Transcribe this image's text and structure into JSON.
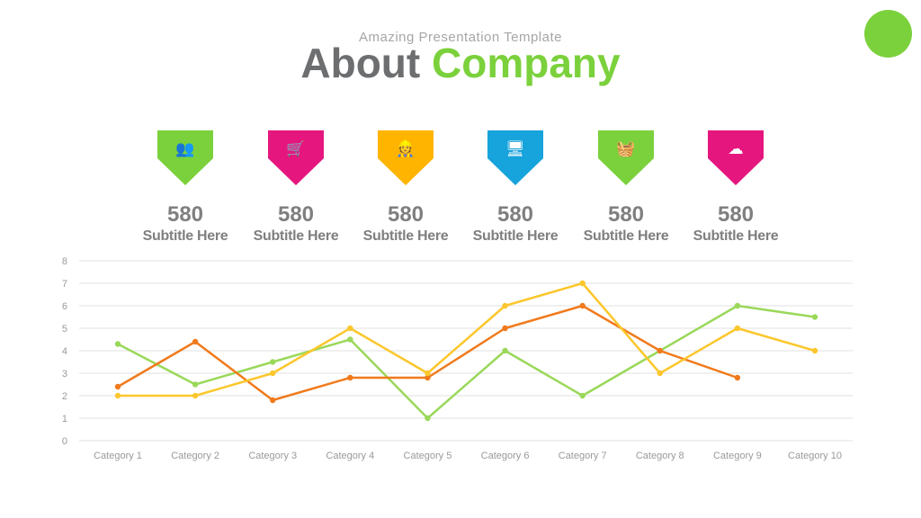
{
  "header": {
    "kicker": "Amazing Presentation Template",
    "title_word1": "About",
    "title_word2": "Company"
  },
  "colors": {
    "green": "#7bd13c",
    "pink": "#e5177e",
    "yellow": "#ffb400",
    "blue": "#17a3db",
    "gray_text": "#7f7f7f"
  },
  "stats": [
    {
      "icon": "users-icon",
      "color": "#7bd13c",
      "value": "580",
      "subtitle": "Subtitle Here"
    },
    {
      "icon": "shopping-cart-icon",
      "color": "#e5177e",
      "value": "580",
      "subtitle": "Subtitle Here"
    },
    {
      "icon": "worker-icon",
      "color": "#ffb400",
      "value": "580",
      "subtitle": "Subtitle Here"
    },
    {
      "icon": "monitor-code-icon",
      "color": "#17a3db",
      "value": "580",
      "subtitle": "Subtitle Here"
    },
    {
      "icon": "shopping-basket-icon",
      "color": "#7bd13c",
      "value": "580",
      "subtitle": "Subtitle Here"
    },
    {
      "icon": "cloud-icon",
      "color": "#e5177e",
      "value": "580",
      "subtitle": "Subtitle Here"
    }
  ],
  "chart_data": {
    "type": "line",
    "title": "",
    "xlabel": "",
    "ylabel": "",
    "categories": [
      "Category 1",
      "Category 2",
      "Category 3",
      "Category 4",
      "Category 5",
      "Category 6",
      "Category 7",
      "Category 8",
      "Category 9",
      "Category 10"
    ],
    "ylim": [
      0,
      8
    ],
    "yticks": [
      "0",
      "1",
      "2",
      "3",
      "4",
      "5",
      "6",
      "7",
      "8"
    ],
    "grid": true,
    "legend": "none",
    "series": [
      {
        "color": "#9ad85a",
        "values": [
          4.3,
          2.5,
          3.5,
          4.5,
          1.0,
          4.0,
          2.0,
          4.0,
          6.0,
          5.5
        ]
      },
      {
        "color": "#f07a1c",
        "values": [
          2.4,
          4.4,
          1.8,
          2.8,
          2.8,
          5.0,
          6.0,
          4.0,
          2.8,
          null
        ]
      },
      {
        "color": "#fcc72c",
        "values": [
          2.0,
          2.0,
          3.0,
          5.0,
          3.0,
          6.0,
          7.0,
          3.0,
          5.0,
          4.0
        ]
      }
    ]
  }
}
